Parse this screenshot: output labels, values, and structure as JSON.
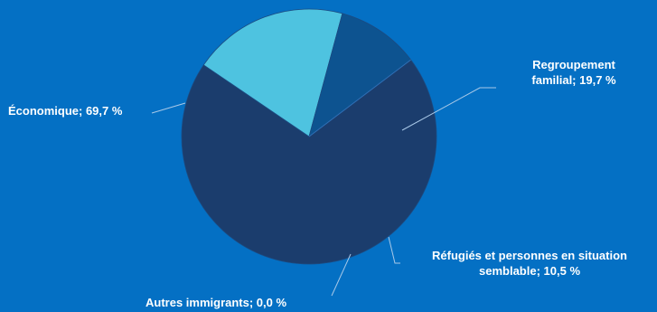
{
  "chart_data": {
    "type": "pie",
    "slices": [
      {
        "label": "Économique; 69,7 %",
        "category": "Économique",
        "value": 69.7,
        "color": "#1b3d6d"
      },
      {
        "label": "Regroupement familial; 19,7 %",
        "category": "Regroupement familial",
        "value": 19.7,
        "color": "#4ec3e0"
      },
      {
        "label": "Réfugiés et personnes en situation semblable; 10,5 %",
        "category": "Réfugiés et personnes en situation semblable",
        "value": 10.5,
        "color": "#0d5390"
      },
      {
        "label": "Autres immigrants; 0,0 %",
        "category": "Autres immigrants",
        "value": 0.0,
        "color": "#2f6fb5"
      }
    ],
    "labels": {
      "economique": "Économique; 69,7 %",
      "regroupement_line1": "Regroupement",
      "regroupement_line2": "familial; 19,7 %",
      "refugies_line1": "Réfugiés et personnes en situation",
      "refugies_line2": "semblable; 10,5 %",
      "autres": "Autres immigrants; 0,0 %"
    },
    "start_angle_deg": 53,
    "direction": "clockwise",
    "background": "#0470c4"
  }
}
